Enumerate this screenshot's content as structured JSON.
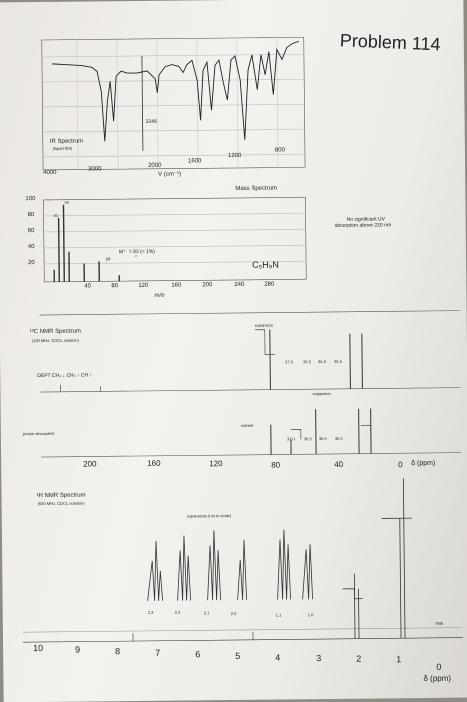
{
  "title": "Problem 114",
  "ir": {
    "label": "IR Spectrum",
    "sublabel": "(liquid film)",
    "peak_label": "2248",
    "axis_ticks": [
      "4000",
      "3000",
      "2000",
      "1600",
      "1200",
      "800"
    ],
    "axis_label": "V (cm⁻¹)"
  },
  "ms": {
    "label": "Mass Spectrum",
    "y_ticks": [
      "100",
      "80",
      "60",
      "40",
      "20"
    ],
    "x_ticks": [
      "40",
      "80",
      "120",
      "160",
      "200",
      "240",
      "280"
    ],
    "x_label": "m/e",
    "peak_labels": [
      "43",
      "41",
      "68"
    ],
    "molecular_ion": "M⁺· = 83 (< 1%)",
    "formula": "C₅H₉N"
  },
  "uv_note": [
    "No significant UV",
    "absorption above 220 nm"
  ],
  "c13": {
    "label": "¹³C NMR Spectrum",
    "sublabel": "(150 MHz, CDCl₃ solution)",
    "dept": "DEPT CH₃ ↓ CH₂ ↑ CH ↑",
    "expansion1": "expansion",
    "expansion2": "expansion",
    "exp_ticks": [
      "37.0",
      "36.5",
      "36.0",
      "35.5"
    ],
    "solvent": "solvent",
    "decoupled": "proton decoupled",
    "axis_ticks": [
      "200",
      "160",
      "120",
      "80",
      "40",
      "0"
    ],
    "axis_unit": "δ (ppm)"
  },
  "h1": {
    "label": "¹H NMR Spectrum",
    "sublabel": "(600 MHz, CDCl₃ solution)",
    "expansions": "expansions (not to scale)",
    "exp_ticks": [
      "2.3",
      "2.2",
      "2.1",
      "2.0",
      "1.1",
      "1.0"
    ],
    "tms": "TMS",
    "axis_ticks": [
      "10",
      "9",
      "8",
      "7",
      "6",
      "5",
      "4",
      "3",
      "2",
      "1",
      "0"
    ],
    "axis_unit": "δ (ppm)"
  }
}
